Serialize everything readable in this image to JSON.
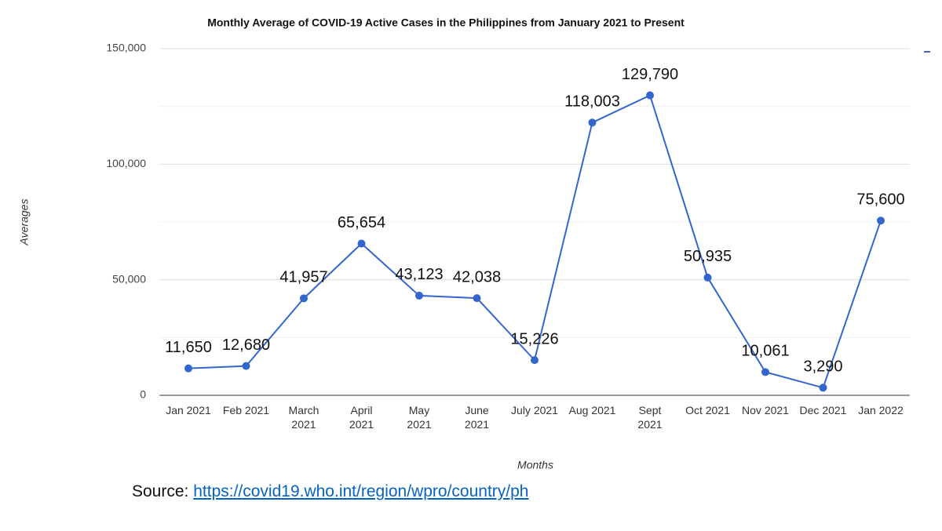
{
  "chart_data": {
    "type": "line",
    "title": "Monthly Average of COVID-19 Active Cases in the Philippines from January 2021 to Present",
    "x_label": "Months",
    "y_label": "Averages",
    "categories": [
      "Jan 2021",
      "Feb 2021",
      "March 2021",
      "April 2021",
      "May 2021",
      "June 2021",
      "July 2021",
      "Aug 2021",
      "Sept 2021",
      "Oct 2021",
      "Nov 2021",
      "Dec 2021",
      "Jan 2022"
    ],
    "values": [
      11650,
      12680,
      41957,
      65654,
      43123,
      42038,
      15226,
      118003,
      129790,
      50935,
      10061,
      3290,
      75600
    ],
    "value_labels": [
      "11,650",
      "12,680",
      "41,957",
      "65,654",
      "43,123",
      "42,038",
      "15,226",
      "118,003",
      "129,790",
      "50,935",
      "10,061",
      "3,290",
      "75,600"
    ],
    "color": "#3366cc",
    "ylim": [
      0,
      150000
    ],
    "yticks": [
      0,
      {
        "value": 50000,
        "label": "50,000"
      },
      {
        "value": 100000,
        "label": "100,000"
      },
      {
        "value": 150000,
        "label": "150,000"
      }
    ],
    "minor_yticks": [
      25000,
      75000,
      125000
    ],
    "grid": true
  },
  "source": {
    "label": "Source:",
    "url": "https://covid19.who.int/region/wpro/country/ph"
  }
}
